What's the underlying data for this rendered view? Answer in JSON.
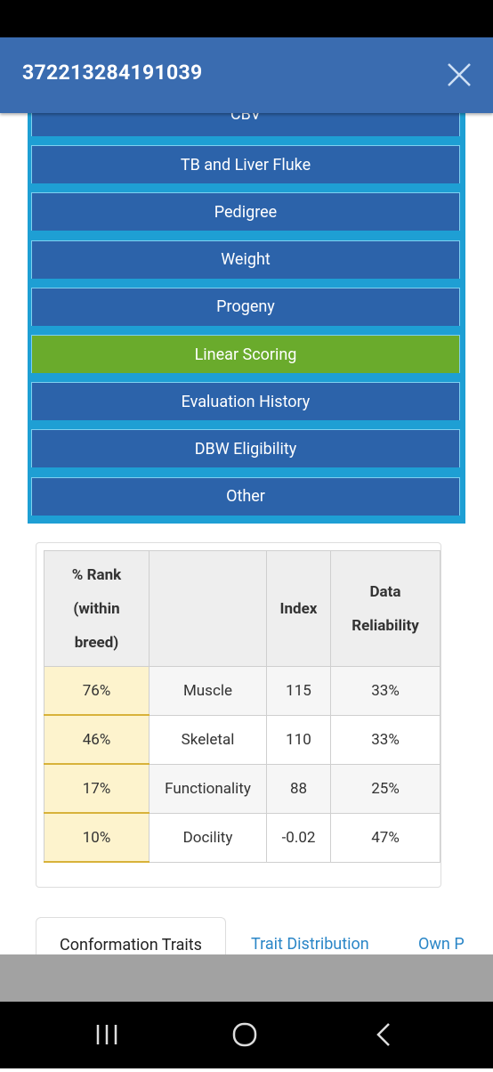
{
  "header": {
    "title": "372213284191039"
  },
  "menu": [
    {
      "label": "CBV",
      "color": "#2c63aa"
    },
    {
      "label": "TB and Liver Fluke",
      "color": "#2c63aa"
    },
    {
      "label": "Pedigree",
      "color": "#2c63aa"
    },
    {
      "label": "Weight",
      "color": "#2c63aa"
    },
    {
      "label": "Progeny",
      "color": "#2c63aa"
    },
    {
      "label": "Linear Scoring",
      "color": "#6aab2c"
    },
    {
      "label": "Evaluation History",
      "color": "#2c63aa"
    },
    {
      "label": "DBW Eligibility",
      "color": "#2c63aa"
    },
    {
      "label": "Other",
      "color": "#2c63aa"
    }
  ],
  "table": {
    "header": {
      "rank": [
        "% Rank",
        "(within",
        "breed)"
      ],
      "index": "Index",
      "reliability": [
        "Data",
        "Reliability"
      ]
    },
    "rows": [
      [
        "76%",
        "Muscle",
        "115",
        "33%"
      ],
      [
        "46%",
        "Skeletal",
        "110",
        "33%"
      ],
      [
        "17%",
        "Functionality",
        "88",
        "25%"
      ],
      [
        "10%",
        "Docility",
        "-0.02",
        "47%"
      ]
    ]
  },
  "tabs": [
    "Conformation Traits",
    "Trait Distribution",
    "Own P"
  ]
}
